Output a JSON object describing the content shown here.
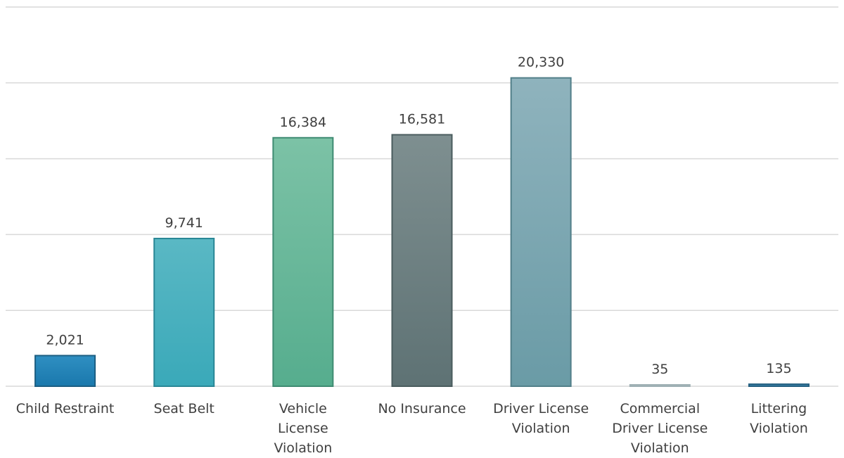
{
  "chart_data": {
    "type": "bar",
    "categories": [
      [
        "Child Restraint"
      ],
      [
        "Seat Belt"
      ],
      [
        "Vehicle",
        "License",
        "Violation"
      ],
      [
        "No Insurance"
      ],
      [
        "Driver License",
        "Violation"
      ],
      [
        "Commercial",
        "Driver License",
        "Violation"
      ],
      [
        "Littering",
        "Violation"
      ]
    ],
    "values": [
      2021,
      9741,
      16384,
      16581,
      20330,
      35,
      135
    ],
    "value_labels": [
      "2,021",
      "9,741",
      "16,384",
      "16,581",
      "20,330",
      "35",
      "135"
    ],
    "ylim": [
      0,
      25000
    ],
    "grid": true,
    "bar_colors": [
      [
        "#2f8fc2",
        "#1a78ac"
      ],
      [
        "#5ab8c4",
        "#3aa9b9"
      ],
      [
        "#7cc2a6",
        "#56ad8e"
      ],
      [
        "#7e8f90",
        "#5e7274"
      ],
      [
        "#8fb3bd",
        "#6a9ba6"
      ],
      [
        "#d4dde0",
        "#b9c7cb"
      ],
      [
        "#4a8fb5",
        "#2e7aa3"
      ]
    ],
    "bar_edge_colors": [
      "#1c5e82",
      "#2a8796",
      "#3f8b72",
      "#4a5c5e",
      "#527f89",
      "#9fb0b4",
      "#245f80"
    ]
  }
}
